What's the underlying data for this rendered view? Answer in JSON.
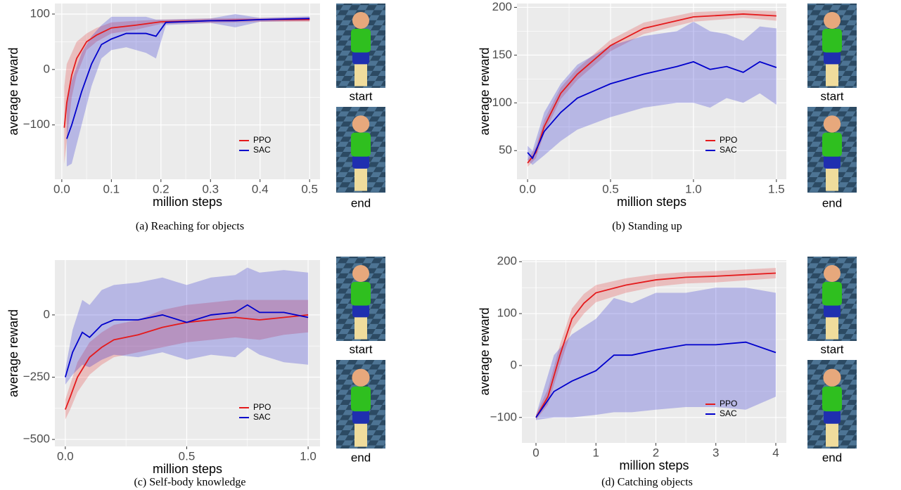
{
  "chart_data": [
    {
      "type": "line",
      "caption": "(a) Reaching for objects",
      "x_label": "million steps",
      "y_label": "average reward",
      "image_labels": [
        "start",
        "end"
      ],
      "xlim": [
        -0.014,
        0.521
      ],
      "xticks": [
        {
          "value": 0,
          "label": "0.0"
        },
        0.1,
        0.2,
        0.3,
        0.4,
        0.5
      ],
      "ylim": [
        -198,
        119
      ],
      "yticks": [
        {
          "value": -100,
          "label": "−100"
        },
        0,
        100
      ],
      "grid": true,
      "legend": "lower right",
      "series": [
        {
          "name": "PPO",
          "color": "#e41a1c",
          "x": [
            0.005,
            0.01,
            0.02,
            0.03,
            0.05,
            0.07,
            0.1,
            0.15,
            0.2,
            0.3,
            0.4,
            0.5
          ],
          "values": [
            -105,
            -60,
            -10,
            20,
            50,
            62,
            75,
            80,
            86,
            88,
            90,
            90
          ],
          "band_lower": [
            -170,
            -130,
            -50,
            -10,
            35,
            50,
            65,
            72,
            82,
            84,
            86,
            86
          ],
          "band_upper": [
            -30,
            10,
            30,
            50,
            65,
            75,
            85,
            88,
            90,
            92,
            93,
            94
          ]
        },
        {
          "name": "SAC",
          "color": "#0000cc",
          "x": [
            0.01,
            0.02,
            0.04,
            0.06,
            0.08,
            0.1,
            0.13,
            0.17,
            0.19,
            0.21,
            0.3,
            0.35,
            0.4,
            0.5
          ],
          "values": [
            -125,
            -100,
            -40,
            10,
            45,
            55,
            65,
            65,
            60,
            85,
            88,
            88,
            90,
            92
          ],
          "band_lower": [
            -175,
            -170,
            -100,
            -30,
            20,
            35,
            40,
            30,
            20,
            80,
            84,
            76,
            86,
            88
          ],
          "band_upper": [
            -60,
            -20,
            30,
            60,
            80,
            95,
            95,
            95,
            90,
            90,
            92,
            100,
            93,
            96
          ]
        }
      ]
    },
    {
      "type": "line",
      "caption": "(b) Standing up",
      "x_label": "million steps",
      "y_label": "average reward",
      "image_labels": [
        "start",
        "end"
      ],
      "xlim": [
        -0.064,
        1.56
      ],
      "xticks": [
        {
          "value": 0,
          "label": "0.0"
        },
        0.5,
        {
          "value": 1,
          "label": "1.0"
        },
        1.5
      ],
      "ylim": [
        20,
        204
      ],
      "yticks": [
        50,
        100,
        150,
        200
      ],
      "grid": true,
      "legend": "lower right",
      "series": [
        {
          "name": "PPO",
          "color": "#e41a1c",
          "x": [
            0,
            0.05,
            0.1,
            0.2,
            0.3,
            0.5,
            0.7,
            1.0,
            1.3,
            1.5
          ],
          "values": [
            37,
            48,
            75,
            110,
            130,
            160,
            178,
            190,
            193,
            191
          ],
          "band_lower": [
            33,
            42,
            68,
            104,
            124,
            154,
            172,
            185,
            189,
            186
          ],
          "band_upper": [
            41,
            54,
            82,
            116,
            136,
            166,
            184,
            195,
            197,
            196
          ]
        },
        {
          "name": "SAC",
          "color": "#0000cc",
          "x": [
            0,
            0.03,
            0.1,
            0.2,
            0.3,
            0.5,
            0.7,
            0.9,
            1.0,
            1.1,
            1.2,
            1.3,
            1.4,
            1.5
          ],
          "values": [
            48,
            42,
            70,
            90,
            105,
            120,
            130,
            138,
            143,
            135,
            138,
            132,
            143,
            137
          ],
          "band_lower": [
            40,
            35,
            45,
            60,
            72,
            85,
            95,
            100,
            100,
            95,
            105,
            100,
            110,
            98
          ],
          "band_upper": [
            55,
            50,
            90,
            120,
            140,
            160,
            170,
            175,
            185,
            175,
            172,
            165,
            180,
            178
          ]
        }
      ]
    },
    {
      "type": "line",
      "caption": "(c) Self-body knowledge",
      "x_label": "million steps",
      "y_label": "average reward",
      "image_labels": [
        "start",
        "end"
      ],
      "xlim": [
        -0.043,
        1.049
      ],
      "xticks": [
        {
          "value": 0,
          "label": "0.0"
        },
        0.5,
        {
          "value": 1,
          "label": "1.0"
        }
      ],
      "ylim": [
        -528,
        220
      ],
      "yticks": [
        {
          "value": -500,
          "label": "−500"
        },
        {
          "value": -250,
          "label": "−250"
        },
        0
      ],
      "grid": true,
      "legend": "lower right",
      "series": [
        {
          "name": "PPO",
          "color": "#e41a1c",
          "x": [
            0,
            0.02,
            0.05,
            0.1,
            0.15,
            0.2,
            0.3,
            0.4,
            0.5,
            0.6,
            0.7,
            0.8,
            0.9,
            1.0
          ],
          "values": [
            -380,
            -330,
            -250,
            -170,
            -130,
            -100,
            -80,
            -50,
            -30,
            -20,
            -10,
            -20,
            -10,
            0
          ],
          "band_lower": [
            -420,
            -380,
            -310,
            -240,
            -200,
            -170,
            -150,
            -130,
            -110,
            -100,
            -90,
            -100,
            -80,
            -70
          ],
          "band_upper": [
            -340,
            -280,
            -190,
            -110,
            -70,
            -40,
            -20,
            20,
            40,
            50,
            60,
            60,
            60,
            60
          ]
        },
        {
          "name": "SAC",
          "color": "#0000cc",
          "x": [
            0,
            0.03,
            0.07,
            0.1,
            0.15,
            0.2,
            0.3,
            0.4,
            0.5,
            0.6,
            0.7,
            0.75,
            0.8,
            0.9,
            1.0
          ],
          "values": [
            -250,
            -150,
            -70,
            -90,
            -40,
            -20,
            -20,
            0,
            -30,
            0,
            10,
            40,
            10,
            10,
            -10
          ],
          "band_lower": [
            -280,
            -240,
            -200,
            -210,
            -180,
            -160,
            -170,
            -150,
            -180,
            -160,
            -170,
            -130,
            -160,
            -190,
            -200
          ],
          "band_upper": [
            -220,
            -60,
            60,
            40,
            100,
            120,
            130,
            150,
            120,
            150,
            160,
            190,
            170,
            180,
            170
          ]
        }
      ]
    },
    {
      "type": "line",
      "caption": "(d) Catching objects",
      "x_label": "million steps",
      "y_label": "average reward",
      "image_labels": [
        "start",
        "end"
      ],
      "xlim": [
        -0.235,
        4.176
      ],
      "xticks": [
        0,
        1,
        2,
        3,
        4
      ],
      "ylim": [
        -149,
        203
      ],
      "yticks": [
        {
          "value": -100,
          "label": "−100"
        },
        0,
        100,
        200
      ],
      "grid": true,
      "legend": "lower right",
      "series": [
        {
          "name": "PPO",
          "color": "#e41a1c",
          "x": [
            0,
            0.2,
            0.4,
            0.6,
            0.8,
            1,
            1.5,
            2,
            2.5,
            3,
            3.5,
            4
          ],
          "values": [
            -100,
            -60,
            20,
            90,
            120,
            140,
            155,
            165,
            170,
            172,
            175,
            178
          ],
          "band_lower": [
            -105,
            -75,
            0,
            70,
            100,
            122,
            140,
            152,
            158,
            160,
            164,
            168
          ],
          "band_upper": [
            -95,
            -45,
            40,
            110,
            138,
            155,
            168,
            176,
            180,
            182,
            185,
            188
          ]
        },
        {
          "name": "SAC",
          "color": "#0000cc",
          "x": [
            0,
            0.3,
            0.6,
            1,
            1.3,
            1.6,
            2,
            2.5,
            3,
            3.5,
            4
          ],
          "values": [
            -100,
            -50,
            -30,
            -10,
            20,
            20,
            30,
            40,
            40,
            45,
            25
          ],
          "band_lower": [
            -105,
            -100,
            -100,
            -95,
            -90,
            -90,
            -85,
            -80,
            -80,
            -85,
            -60
          ],
          "band_upper": [
            -95,
            20,
            60,
            90,
            130,
            120,
            140,
            140,
            150,
            150,
            140
          ]
        }
      ]
    }
  ]
}
